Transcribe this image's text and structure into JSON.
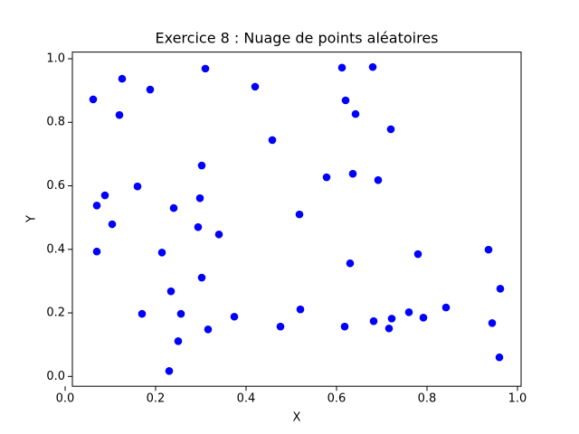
{
  "chart_data": {
    "type": "scatter",
    "title": "Exercice 8 : Nuage de points aléatoires",
    "x_label": "X",
    "y_label": "Y",
    "color": "#0000ff",
    "xlim": [
      0.016,
      1.008
    ],
    "ylim": [
      -0.031,
      1.021
    ],
    "xticks": [
      {
        "value": 0,
        "label": "0.0"
      },
      {
        "value": 0.2,
        "label": "0.2"
      },
      {
        "value": 0.4,
        "label": "0.4"
      },
      {
        "value": 0.6,
        "label": "0.6"
      },
      {
        "value": 0.8,
        "label": "0.8"
      },
      {
        "value": 1,
        "label": "1.0"
      }
    ],
    "yticks": [
      {
        "value": 0,
        "label": "0.0"
      },
      {
        "value": 0.2,
        "label": "0.2"
      },
      {
        "value": 0.4,
        "label": "0.4"
      },
      {
        "value": 0.6,
        "label": "0.6"
      },
      {
        "value": 0.8,
        "label": "0.8"
      },
      {
        "value": 1,
        "label": "1.0"
      }
    ],
    "x": [
      0.062,
      0.126,
      0.188,
      0.12,
      0.31,
      0.42,
      0.612,
      0.68,
      0.62,
      0.642,
      0.72,
      0.458,
      0.302,
      0.16,
      0.578,
      0.636,
      0.692,
      0.088,
      0.298,
      0.07,
      0.24,
      0.518,
      0.104,
      0.294,
      0.34,
      0.07,
      0.214,
      0.936,
      0.78,
      0.63,
      0.302,
      0.962,
      0.234,
      0.842,
      0.52,
      0.17,
      0.256,
      0.76,
      0.374,
      0.792,
      0.682,
      0.722,
      0.944,
      0.476,
      0.618,
      0.316,
      0.716,
      0.25,
      0.96,
      0.23
    ],
    "y": [
      0.872,
      0.937,
      0.903,
      0.823,
      0.969,
      0.912,
      0.972,
      0.974,
      0.869,
      0.826,
      0.778,
      0.744,
      0.664,
      0.598,
      0.627,
      0.638,
      0.618,
      0.57,
      0.561,
      0.538,
      0.53,
      0.51,
      0.479,
      0.47,
      0.447,
      0.393,
      0.39,
      0.399,
      0.385,
      0.356,
      0.311,
      0.276,
      0.268,
      0.217,
      0.211,
      0.197,
      0.197,
      0.202,
      0.188,
      0.185,
      0.174,
      0.182,
      0.168,
      0.157,
      0.157,
      0.148,
      0.151,
      0.111,
      0.06,
      0.017
    ]
  }
}
